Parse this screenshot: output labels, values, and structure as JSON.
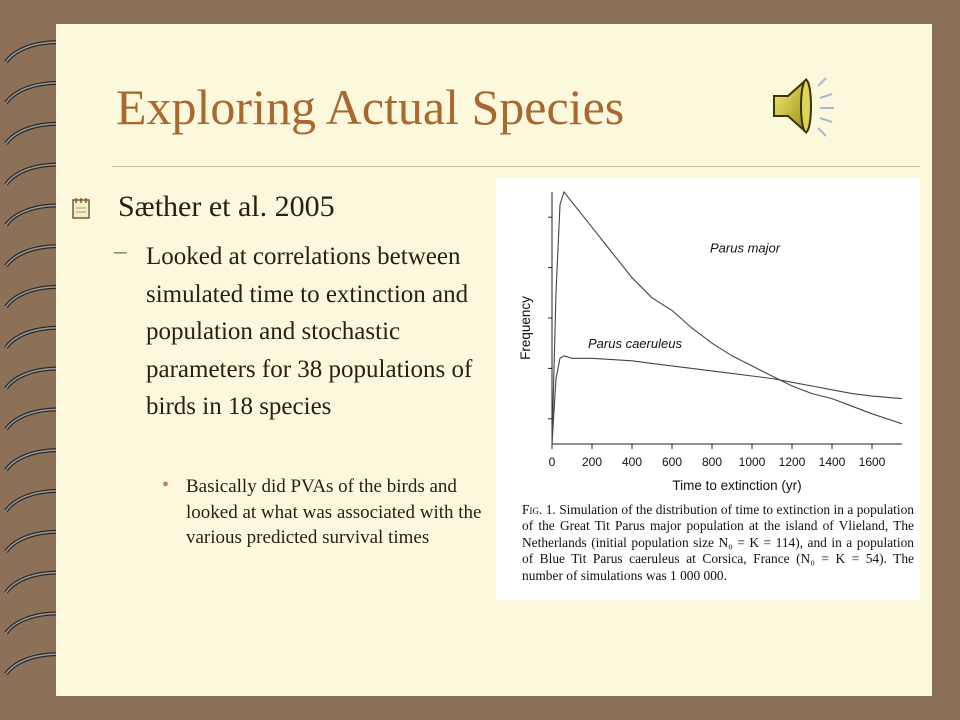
{
  "slide": {
    "title": "Exploring Actual Species",
    "bullet1": "Sæther et al. 2005",
    "bullet2": "Looked at correlations between simulated time to extinction and population and stochastic parameters for 38 populations of birds in 18 species",
    "bullet2_marker": "–",
    "bullet3": "Basically did PVAs of the birds and looked at what was associated with the various predicted survival times",
    "bullet3_marker": "•",
    "icons": {
      "bullet1": "notepad-bullet-icon",
      "audio": "speaker-icon",
      "binding": "spiral-binding-rings"
    },
    "colors": {
      "background": "#8c7158",
      "slide": "#fcf8dc",
      "title": "#a8682f",
      "text": "#2b1d11"
    }
  },
  "figure": {
    "caption_label": "Fig. 1.",
    "caption_text": "Simulation of the distribution of time to extinction in a population of the Great Tit Parus major population at the island of Vlieland, The Netherlands (initial population size N₀ = K = 114), and in a population of Blue Tit Parus caeruleus at Corsica, France (N₀ = K = 54). The number of simulations was 1 000 000."
  },
  "chart_data": {
    "type": "line",
    "xlabel": "Time to extinction (yr)",
    "ylabel": "Frequency",
    "xlim": [
      0,
      1750
    ],
    "ylim": [
      0,
      1
    ],
    "x_ticks": [
      0,
      200,
      400,
      600,
      800,
      1000,
      1200,
      1400,
      1600
    ],
    "x_tick_labels": [
      "0",
      "200",
      "400",
      "600",
      "800",
      "1000",
      "1200",
      "1400",
      "1600"
    ],
    "grid": false,
    "legend": "inline labels",
    "series": [
      {
        "name": "Parus major",
        "x": [
          0,
          20,
          40,
          60,
          100,
          150,
          200,
          300,
          400,
          500,
          600,
          700,
          800,
          900,
          1000,
          1100,
          1200,
          1300,
          1400,
          1500,
          1600,
          1750
        ],
        "y": [
          0.0,
          0.6,
          0.95,
          1.0,
          0.96,
          0.91,
          0.86,
          0.76,
          0.66,
          0.58,
          0.53,
          0.46,
          0.4,
          0.35,
          0.31,
          0.27,
          0.23,
          0.2,
          0.18,
          0.15,
          0.12,
          0.08
        ]
      },
      {
        "name": "Parus caeruleus",
        "x": [
          0,
          20,
          40,
          60,
          100,
          200,
          300,
          400,
          500,
          600,
          700,
          800,
          900,
          1000,
          1100,
          1200,
          1300,
          1400,
          1500,
          1600,
          1750
        ],
        "y": [
          0.0,
          0.26,
          0.34,
          0.35,
          0.34,
          0.34,
          0.335,
          0.33,
          0.32,
          0.31,
          0.3,
          0.29,
          0.28,
          0.27,
          0.26,
          0.245,
          0.23,
          0.215,
          0.2,
          0.19,
          0.18
        ]
      }
    ]
  }
}
